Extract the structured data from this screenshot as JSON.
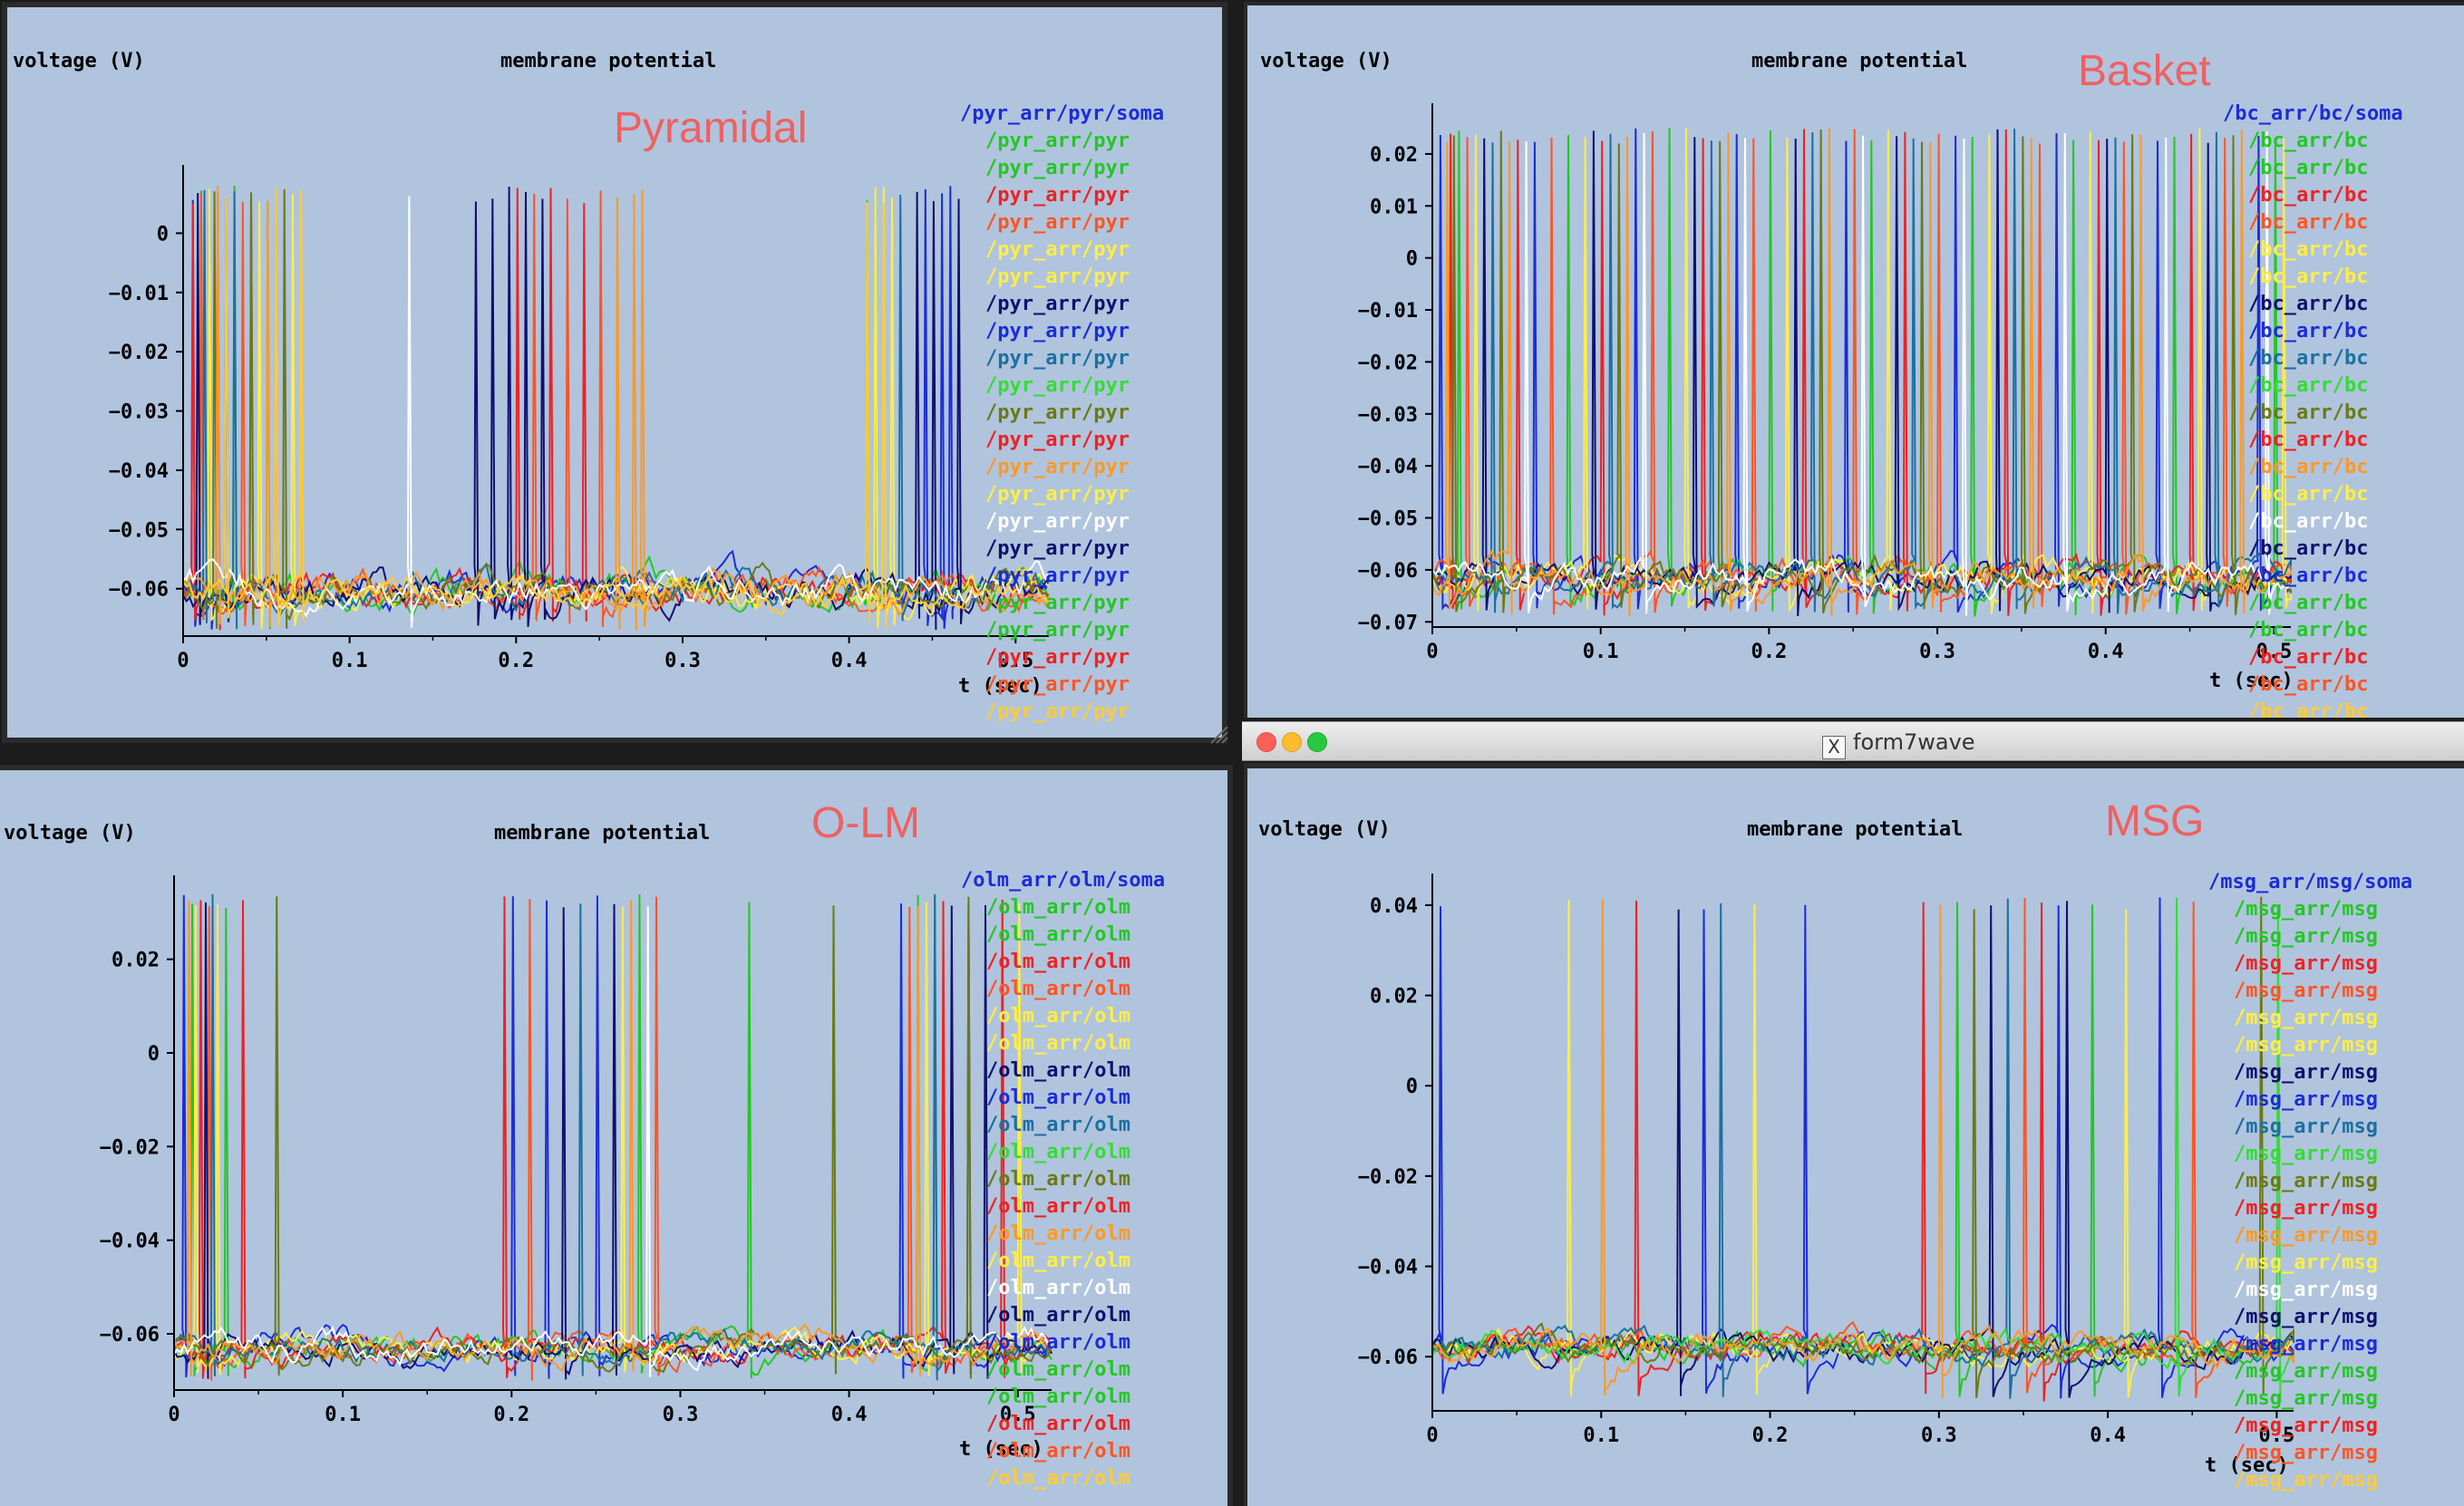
{
  "window_title": "form7wave",
  "colors": {
    "background": "#b0c4de",
    "axis": "#000000",
    "annotation": "#f06060"
  },
  "panels": [
    {
      "id": "pyramidal",
      "annotation": "Pyramidal",
      "chart_data": {
        "type": "line",
        "title": "membrane potential",
        "ylabel": "voltage (V)",
        "xlabel": "t (sec)",
        "xlim": [
          0,
          0.52
        ],
        "ylim": [
          -0.068,
          0.01
        ],
        "xticks": [
          "0",
          "0.1",
          "0.2",
          "0.3",
          "0.4",
          "0.5"
        ],
        "xtick_values": [
          0,
          0.1,
          0.2,
          0.3,
          0.4,
          0.5
        ],
        "yticks": [
          "0",
          "−0.01",
          "−0.02",
          "−0.03",
          "−0.04",
          "−0.05",
          "−0.06"
        ],
        "ytick_values": [
          0,
          -0.01,
          -0.02,
          -0.03,
          -0.04,
          -0.05,
          -0.06
        ],
        "rest": -0.06,
        "peak": 0.008,
        "min": -0.067,
        "legend": [
          "/pyr_arr/pyr/soma",
          "/pyr_arr/pyr",
          "/pyr_arr/pyr",
          "/pyr_arr/pyr",
          "/pyr_arr/pyr",
          "/pyr_arr/pyr",
          "/pyr_arr/pyr",
          "/pyr_arr/pyr",
          "/pyr_arr/pyr",
          "/pyr_arr/pyr",
          "/pyr_arr/pyr",
          "/pyr_arr/pyr",
          "/pyr_arr/pyr",
          "/pyr_arr/pyr",
          "/pyr_arr/pyr",
          "/pyr_arr/pyr",
          "/pyr_arr/pyr",
          "/pyr_arr/pyr",
          "/pyr_arr/pyr",
          "/pyr_arr/pyr",
          "/pyr_arr/pyr",
          "/pyr_arr/pyr",
          "/pyr_arr/pyr"
        ],
        "legend_colors": [
          "#1c2cd8",
          "#22c822",
          "#22c822",
          "#ee2222",
          "#ff5522",
          "#ffee44",
          "#ffee44",
          "#101070",
          "#1c2cd8",
          "#1c70a0",
          "#33dd33",
          "#6b7a10",
          "#ee2222",
          "#ff9922",
          "#ffee44",
          "#ffffff",
          "#101070",
          "#1c2cd8",
          "#22c822",
          "#22c822",
          "#ee2222",
          "#ff5522",
          "#ffcc33"
        ],
        "series": [
          {
            "color": "#1c2cd8",
            "spikes": [
              0.005,
              0.015,
              0.445,
              0.455,
              0.46
            ]
          },
          {
            "color": "#22c822",
            "spikes": [
              0.01,
              0.03,
              0.05,
              0.41,
              0.415
            ]
          },
          {
            "color": "#ee2222",
            "spikes": [
              0.005,
              0.02,
              0.04,
              0.2,
              0.22,
              0.24
            ]
          },
          {
            "color": "#ff5522",
            "spikes": [
              0.01,
              0.035,
              0.055,
              0.21,
              0.23,
              0.25
            ]
          },
          {
            "color": "#ffee44",
            "spikes": [
              0.015,
              0.045,
              0.065,
              0.415,
              0.42,
              0.425
            ]
          },
          {
            "color": "#101070",
            "spikes": [
              0.008,
              0.025,
              0.175,
              0.185,
              0.195,
              0.205,
              0.215,
              0.44,
              0.45,
              0.465
            ]
          },
          {
            "color": "#1c70a0",
            "spikes": [
              0.012,
              0.03,
              0.43
            ]
          },
          {
            "color": "#6b7a10",
            "spikes": [
              0.018,
              0.04,
              0.06
            ]
          },
          {
            "color": "#ff9922",
            "spikes": [
              0.02,
              0.05,
              0.07,
              0.26,
              0.27,
              0.275
            ]
          },
          {
            "color": "#ffffff",
            "spikes": [
              0.135
            ]
          },
          {
            "color": "#ffcc33",
            "spikes": [
              0.025,
              0.055,
              0.07,
              0.41,
              0.42
            ]
          }
        ]
      }
    },
    {
      "id": "basket",
      "annotation": "Basket",
      "chart_data": {
        "type": "line",
        "title": "membrane potential",
        "ylabel": "voltage (V)",
        "xlabel": "t (sec)",
        "xlim": [
          0,
          0.51
        ],
        "ylim": [
          -0.071,
          0.028
        ],
        "xticks": [
          "0",
          "0.1",
          "0.2",
          "0.3",
          "0.4",
          "0.5"
        ],
        "xtick_values": [
          0,
          0.1,
          0.2,
          0.3,
          0.4,
          0.5
        ],
        "yticks": [
          "0.02",
          "0.01",
          "0",
          "−0.01",
          "−0.02",
          "−0.03",
          "−0.04",
          "−0.05",
          "−0.06",
          "−0.07"
        ],
        "ytick_values": [
          0.02,
          0.01,
          0,
          -0.01,
          -0.02,
          -0.03,
          -0.04,
          -0.05,
          -0.06,
          -0.07
        ],
        "rest": -0.061,
        "peak": 0.025,
        "min": -0.069,
        "legend": [
          "/bc_arr/bc/soma",
          "/bc_arr/bc",
          "/bc_arr/bc",
          "/bc_arr/bc",
          "/bc_arr/bc",
          "/bc_arr/bc",
          "/bc_arr/bc",
          "/bc_arr/bc",
          "/bc_arr/bc",
          "/bc_arr/bc",
          "/bc_arr/bc",
          "/bc_arr/bc",
          "/bc_arr/bc",
          "/bc_arr/bc",
          "/bc_arr/bc",
          "/bc_arr/bc",
          "/bc_arr/bc",
          "/bc_arr/bc",
          "/bc_arr/bc",
          "/bc_arr/bc",
          "/bc_arr/bc",
          "/bc_arr/bc",
          "/bc_arr/bc"
        ],
        "legend_colors": [
          "#1c2cd8",
          "#22c822",
          "#22c822",
          "#ee2222",
          "#ff5522",
          "#ffee44",
          "#ffee44",
          "#101070",
          "#1c2cd8",
          "#1c70a0",
          "#33dd33",
          "#6b7a10",
          "#ee2222",
          "#ff9922",
          "#ffee44",
          "#ffffff",
          "#101070",
          "#1c2cd8",
          "#22c822",
          "#22c822",
          "#ee2222",
          "#ff5522",
          "#ffcc33"
        ],
        "series": [
          {
            "color": "#1c2cd8",
            "spikes": [
              0.004,
              0.06,
              0.12,
              0.18,
              0.245,
              0.31,
              0.37,
              0.43,
              0.49
            ]
          },
          {
            "color": "#22c822",
            "spikes": [
              0.015,
              0.08,
              0.14,
              0.2,
              0.26,
              0.32,
              0.38,
              0.44,
              0.5
            ]
          },
          {
            "color": "#ee2222",
            "spikes": [
              0.01,
              0.05,
              0.1,
              0.16,
              0.22,
              0.28,
              0.34,
              0.395,
              0.45
            ]
          },
          {
            "color": "#ff5522",
            "spikes": [
              0.02,
              0.07,
              0.13,
              0.19,
              0.25,
              0.3,
              0.36,
              0.41,
              0.47
            ]
          },
          {
            "color": "#ffee44",
            "spikes": [
              0.025,
              0.09,
              0.15,
              0.21,
              0.27,
              0.33,
              0.39,
              0.455,
              0.505
            ]
          },
          {
            "color": "#101070",
            "spikes": [
              0.03,
              0.095,
              0.155,
              0.215,
              0.275,
              0.335,
              0.4,
              0.46
            ]
          },
          {
            "color": "#1c70a0",
            "spikes": [
              0.035,
              0.105,
              0.165,
              0.225,
              0.285,
              0.345,
              0.405,
              0.465
            ]
          },
          {
            "color": "#6b7a10",
            "spikes": [
              0.012,
              0.04,
              0.11,
              0.17,
              0.23,
              0.29,
              0.35,
              0.415,
              0.475
            ]
          },
          {
            "color": "#ff9922",
            "spikes": [
              0.008,
              0.045,
              0.115,
              0.175,
              0.235,
              0.295,
              0.355,
              0.42,
              0.48
            ]
          },
          {
            "color": "#ffffff",
            "spikes": [
              0.055,
              0.125,
              0.185,
              0.255,
              0.315,
              0.375,
              0.435,
              0.495
            ]
          }
        ]
      }
    },
    {
      "id": "olm",
      "annotation": "O-LM",
      "chart_data": {
        "type": "line",
        "title": "membrane potential",
        "ylabel": "voltage (V)",
        "xlabel": "t (sec)",
        "xlim": [
          0,
          0.52
        ],
        "ylim": [
          -0.072,
          0.036
        ],
        "xticks": [
          "0",
          "0.1",
          "0.2",
          "0.3",
          "0.4",
          "0.5"
        ],
        "xtick_values": [
          0,
          0.1,
          0.2,
          0.3,
          0.4,
          0.5
        ],
        "yticks": [
          "0.02",
          "0",
          "−0.02",
          "−0.04",
          "−0.06"
        ],
        "ytick_values": [
          0.02,
          0,
          -0.02,
          -0.04,
          -0.06
        ],
        "rest": -0.063,
        "peak": 0.034,
        "min": -0.07,
        "legend": [
          "/olm_arr/olm/soma",
          "/olm_arr/olm",
          "/olm_arr/olm",
          "/olm_arr/olm",
          "/olm_arr/olm",
          "/olm_arr/olm",
          "/olm_arr/olm",
          "/olm_arr/olm",
          "/olm_arr/olm",
          "/olm_arr/olm",
          "/olm_arr/olm",
          "/olm_arr/olm",
          "/olm_arr/olm",
          "/olm_arr/olm",
          "/olm_arr/olm",
          "/olm_arr/olm",
          "/olm_arr/olm",
          "/olm_arr/olm",
          "/olm_arr/olm",
          "/olm_arr/olm",
          "/olm_arr/olm",
          "/olm_arr/olm",
          "/olm_arr/olm"
        ],
        "legend_colors": [
          "#1c2cd8",
          "#22c822",
          "#22c822",
          "#ee2222",
          "#ff5522",
          "#ffee44",
          "#ffee44",
          "#101070",
          "#1c2cd8",
          "#1c70a0",
          "#33dd33",
          "#6b7a10",
          "#ee2222",
          "#ff9922",
          "#ffee44",
          "#ffffff",
          "#101070",
          "#1c2cd8",
          "#22c822",
          "#22c822",
          "#ee2222",
          "#ff5522",
          "#ffcc33"
        ],
        "series": [
          {
            "color": "#1c2cd8",
            "spikes": [
              0.005,
              0.2,
              0.22,
              0.25,
              0.43,
              0.47
            ]
          },
          {
            "color": "#22c822",
            "spikes": [
              0.01,
              0.03,
              0.275,
              0.34,
              0.44,
              0.45
            ]
          },
          {
            "color": "#ee2222",
            "spikes": [
              0.015,
              0.04,
              0.195,
              0.455,
              0.49
            ]
          },
          {
            "color": "#ff5522",
            "spikes": [
              0.02,
              0.21,
              0.285,
              0.435
            ]
          },
          {
            "color": "#ffee44",
            "spikes": [
              0.012,
              0.025,
              0.265,
              0.445,
              0.5
            ]
          },
          {
            "color": "#101070",
            "spikes": [
              0.018,
              0.23,
              0.26,
              0.46,
              0.48
            ]
          },
          {
            "color": "#1c70a0",
            "spikes": [
              0.022,
              0.24,
              0.45
            ]
          },
          {
            "color": "#6b7a10",
            "spikes": [
              0.06,
              0.39,
              0.47
            ]
          },
          {
            "color": "#ff9922",
            "spikes": [
              0.008,
              0.27,
              0.44
            ]
          },
          {
            "color": "#ffffff",
            "spikes": [
              0.28
            ]
          }
        ]
      }
    },
    {
      "id": "msg",
      "annotation": "MSG",
      "chart_data": {
        "type": "line",
        "title": "membrane potential",
        "ylabel": "voltage (V)",
        "xlabel": "t (sec)",
        "xlim": [
          0,
          0.51
        ],
        "ylim": [
          -0.072,
          0.045
        ],
        "xticks": [
          "0",
          "0.1",
          "0.2",
          "0.3",
          "0.4",
          "0.5"
        ],
        "xtick_values": [
          0,
          0.1,
          0.2,
          0.3,
          0.4,
          0.5
        ],
        "yticks": [
          "0.04",
          "0.02",
          "0",
          "−0.02",
          "−0.04",
          "−0.06"
        ],
        "ytick_values": [
          0.04,
          0.02,
          0,
          -0.02,
          -0.04,
          -0.06
        ],
        "rest": -0.058,
        "peak": 0.042,
        "min": -0.07,
        "legend": [
          "/msg_arr/msg/soma",
          "/msg_arr/msg",
          "/msg_arr/msg",
          "/msg_arr/msg",
          "/msg_arr/msg",
          "/msg_arr/msg",
          "/msg_arr/msg",
          "/msg_arr/msg",
          "/msg_arr/msg",
          "/msg_arr/msg",
          "/msg_arr/msg",
          "/msg_arr/msg",
          "/msg_arr/msg",
          "/msg_arr/msg",
          "/msg_arr/msg",
          "/msg_arr/msg",
          "/msg_arr/msg",
          "/msg_arr/msg",
          "/msg_arr/msg",
          "/msg_arr/msg",
          "/msg_arr/msg",
          "/msg_arr/msg",
          "/msg_arr/msg"
        ],
        "legend_colors": [
          "#1c2cd8",
          "#22c822",
          "#22c822",
          "#ee2222",
          "#ff5522",
          "#ffee44",
          "#ffee44",
          "#101070",
          "#1c2cd8",
          "#1c70a0",
          "#33dd33",
          "#6b7a10",
          "#ee2222",
          "#ff9922",
          "#ffee44",
          "#ffffff",
          "#101070",
          "#1c2cd8",
          "#22c822",
          "#22c822",
          "#ee2222",
          "#ff5522",
          "#ffcc33"
        ],
        "series": [
          {
            "color": "#1c2cd8",
            "spikes": [
              0.004,
              0.16,
              0.22,
              0.37,
              0.43
            ]
          },
          {
            "color": "#22c822",
            "spikes": [
              0.31,
              0.39
            ]
          },
          {
            "color": "#ee2222",
            "spikes": [
              0.12,
              0.29,
              0.36
            ]
          },
          {
            "color": "#ff5522",
            "spikes": [
              0.35,
              0.45
            ]
          },
          {
            "color": "#ffee44",
            "spikes": [
              0.08,
              0.19,
              0.41
            ]
          },
          {
            "color": "#101070",
            "spikes": [
              0.145,
              0.33,
              0.375
            ]
          },
          {
            "color": "#1c70a0",
            "spikes": [
              0.17,
              0.34
            ]
          },
          {
            "color": "#33dd33",
            "spikes": [
              0.44,
              0.5
            ]
          },
          {
            "color": "#6b7a10",
            "spikes": [
              0.32,
              0.49
            ]
          },
          {
            "color": "#ff9922",
            "spikes": [
              0.1,
              0.3
            ]
          }
        ]
      }
    }
  ]
}
